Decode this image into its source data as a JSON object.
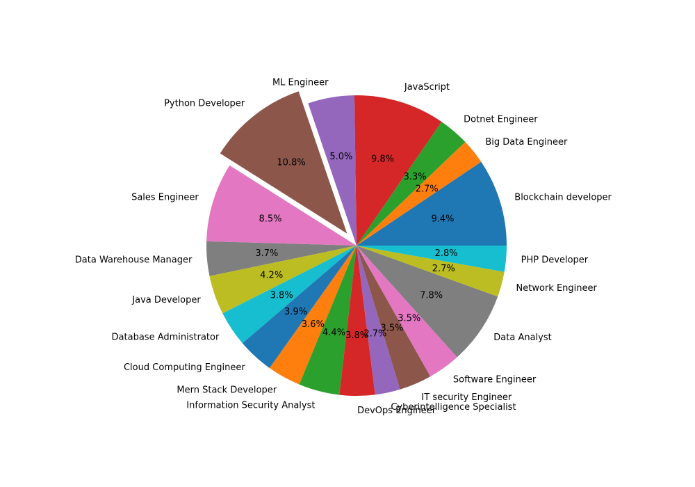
{
  "chart_data": {
    "type": "pie",
    "title": "",
    "start_angle_deg": 0,
    "direction": "counterclockwise",
    "slices": [
      {
        "label": "Blockchain developer",
        "pct_label": "9.4%",
        "value": 9.4,
        "color": "#1f77b4",
        "exploded": false
      },
      {
        "label": "Big Data Engineer",
        "pct_label": "2.7%",
        "value": 2.7,
        "color": "#ff7f0e",
        "exploded": false
      },
      {
        "label": "Dotnet Engineer",
        "pct_label": "3.3%",
        "value": 3.3,
        "color": "#2ca02c",
        "exploded": false
      },
      {
        "label": "JavaScript",
        "pct_label": "9.8%",
        "value": 9.8,
        "color": "#d62728",
        "exploded": false
      },
      {
        "label": "ML Engineer",
        "pct_label": "5.0%",
        "value": 5.0,
        "color": "#9467bd",
        "exploded": false
      },
      {
        "label": "Python Developer",
        "pct_label": "10.8%",
        "value": 10.8,
        "color": "#8c564b",
        "exploded": true
      },
      {
        "label": "Sales Engineer",
        "pct_label": "8.5%",
        "value": 8.5,
        "color": "#e377c2",
        "exploded": false
      },
      {
        "label": "Data Warehouse Manager",
        "pct_label": "3.7%",
        "value": 3.7,
        "color": "#7f7f7f",
        "exploded": false
      },
      {
        "label": "Java Developer",
        "pct_label": "4.2%",
        "value": 4.2,
        "color": "#bcbd22",
        "exploded": false
      },
      {
        "label": "Database Administrator",
        "pct_label": "3.8%",
        "value": 3.8,
        "color": "#17becf",
        "exploded": false
      },
      {
        "label": "Cloud Computing Engineer",
        "pct_label": "3.9%",
        "value": 3.9,
        "color": "#1f77b4",
        "exploded": false
      },
      {
        "label": "Mern Stack Developer",
        "pct_label": "3.6%",
        "value": 3.6,
        "color": "#ff7f0e",
        "exploded": false
      },
      {
        "label": "Information Security Analyst",
        "pct_label": "4.4%",
        "value": 4.4,
        "color": "#2ca02c",
        "exploded": false
      },
      {
        "label": "DevOps Engineer",
        "pct_label": "3.8%",
        "value": 3.8,
        "color": "#d62728",
        "exploded": false
      },
      {
        "label": "Cyberintelligence Specialist",
        "pct_label": "2.7%",
        "value": 2.7,
        "color": "#9467bd",
        "exploded": false
      },
      {
        "label": "IT security Engineer",
        "pct_label": "3.5%",
        "value": 3.5,
        "color": "#8c564b",
        "exploded": false
      },
      {
        "label": "Software Engineer",
        "pct_label": "3.5%",
        "value": 3.5,
        "color": "#e377c2",
        "exploded": false
      },
      {
        "label": "Data Analyst",
        "pct_label": "7.8%",
        "value": 7.8,
        "color": "#7f7f7f",
        "exploded": false
      },
      {
        "label": "Network Engineer",
        "pct_label": "2.7%",
        "value": 2.7,
        "color": "#bcbd22",
        "exploded": false
      },
      {
        "label": "PHP Developer",
        "pct_label": "2.8%",
        "value": 2.8,
        "color": "#17becf",
        "exploded": false
      }
    ]
  }
}
